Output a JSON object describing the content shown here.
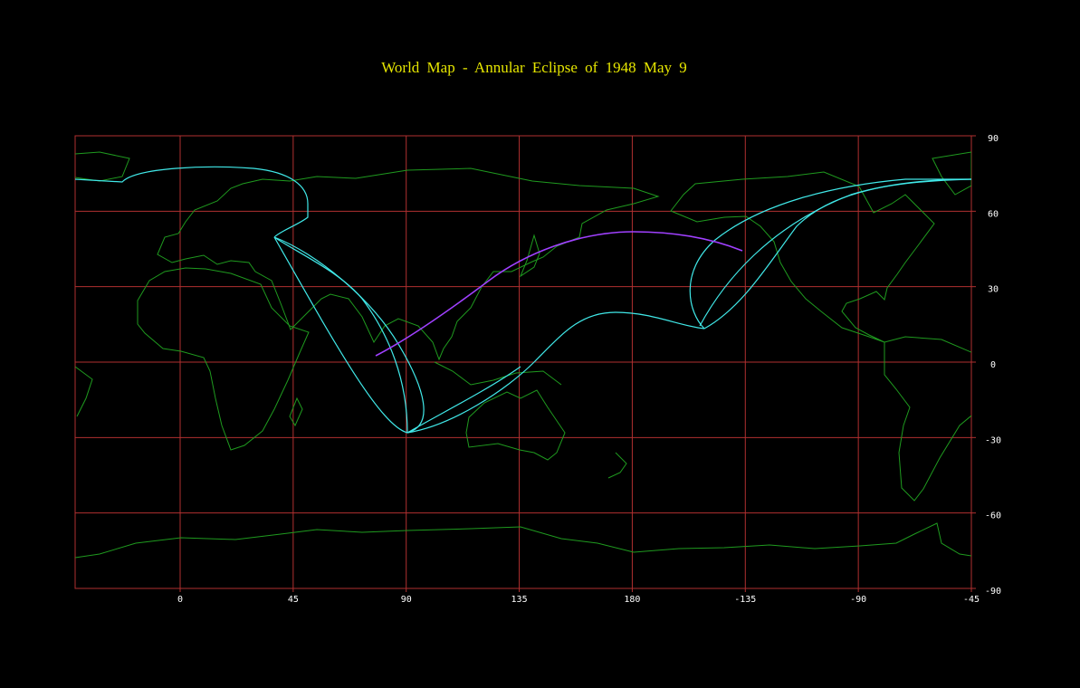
{
  "title": "World Map  -  Annular  Eclipse  of  1948 May  9",
  "map": {
    "lon_ticks": [
      0,
      45,
      90,
      135,
      180,
      -135,
      -90,
      -45
    ],
    "lat_ticks": [
      90,
      60,
      30,
      0,
      -30,
      -60,
      -90
    ]
  }
}
